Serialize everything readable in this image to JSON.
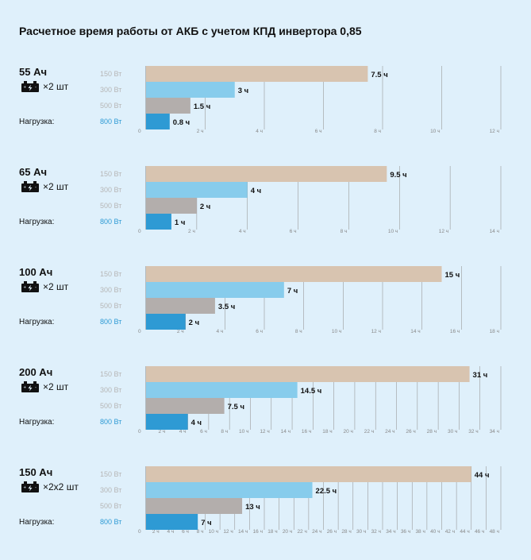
{
  "title": "Расчетное время работы от АКБ с учетом КПД инвертора 0,85",
  "load_label": "Нагрузка:",
  "colors": {
    "background": "#dff0fb",
    "series": [
      "#d8c4b0",
      "#87ccec",
      "#b3aeac",
      "#2e9ad4"
    ],
    "load_label_muted": "#b6b6b6",
    "load_label_active": "#2f9bd5",
    "grid": "#9a9a9a",
    "tick": "#888888"
  },
  "icons": {
    "battery": "battery-icon"
  },
  "chart_data": [
    {
      "type": "bar",
      "orientation": "horizontal",
      "capacity": "55 Ач",
      "quantity": "×2 шт",
      "categories": [
        "150 Вт",
        "300 Вт",
        "500 Вт",
        "800 Вт"
      ],
      "values": [
        7.5,
        3,
        1.5,
        0.8
      ],
      "value_labels": [
        "7.5 ч",
        "3 ч",
        "1.5 ч",
        "0.8 ч"
      ],
      "xlim": [
        0,
        12
      ],
      "ticks": [
        0,
        2,
        4,
        6,
        8,
        10,
        12
      ],
      "tick_labels": [
        "0",
        "2 ч",
        "4 ч",
        "6 ч",
        "8 ч",
        "10 ч",
        "12 ч"
      ],
      "grid": true
    },
    {
      "type": "bar",
      "orientation": "horizontal",
      "capacity": "65 Ач",
      "quantity": "×2 шт",
      "categories": [
        "150 Вт",
        "300 Вт",
        "500 Вт",
        "800 Вт"
      ],
      "values": [
        9.5,
        4,
        2,
        1
      ],
      "value_labels": [
        "9.5 ч",
        "4 ч",
        "2 ч",
        "1 ч"
      ],
      "xlim": [
        0,
        14
      ],
      "ticks": [
        0,
        2,
        4,
        6,
        8,
        10,
        12,
        14
      ],
      "tick_labels": [
        "0",
        "2 ч",
        "4 ч",
        "6 ч",
        "8 ч",
        "10 ч",
        "12 ч",
        "14 ч"
      ],
      "grid": true
    },
    {
      "type": "bar",
      "orientation": "horizontal",
      "capacity": "100 Ач",
      "quantity": "×2 шт",
      "categories": [
        "150 Вт",
        "300 Вт",
        "500 Вт",
        "800 Вт"
      ],
      "values": [
        15,
        7,
        3.5,
        2
      ],
      "value_labels": [
        "15 ч",
        "7 ч",
        "3.5 ч",
        "2 ч"
      ],
      "xlim": [
        0,
        18
      ],
      "ticks": [
        0,
        2,
        4,
        6,
        8,
        10,
        12,
        14,
        16,
        18
      ],
      "tick_labels": [
        "0",
        "2 ч",
        "4 ч",
        "6 ч",
        "8 ч",
        "10 ч",
        "12 ч",
        "14 ч",
        "16 ч",
        "18 ч"
      ],
      "grid": true
    },
    {
      "type": "bar",
      "orientation": "horizontal",
      "capacity": "200 Ач",
      "quantity": "×2 шт",
      "categories": [
        "150 Вт",
        "300 Вт",
        "500 Вт",
        "800 Вт"
      ],
      "values": [
        31,
        14.5,
        7.5,
        4
      ],
      "value_labels": [
        "31 ч",
        "14.5 ч",
        "7.5 ч",
        "4 ч"
      ],
      "xlim": [
        0,
        34
      ],
      "ticks": [
        0,
        2,
        4,
        6,
        8,
        10,
        12,
        14,
        16,
        18,
        20,
        22,
        24,
        26,
        28,
        30,
        32,
        34
      ],
      "tick_labels": [
        "0",
        "2 ч",
        "4 ч",
        "6 ч",
        "8 ч",
        "10 ч",
        "12 ч",
        "14 ч",
        "16 ч",
        "18 ч",
        "20 ч",
        "22 ч",
        "24 ч",
        "26 ч",
        "28 ч",
        "30 ч",
        "32 ч",
        "34 ч"
      ],
      "grid": true
    },
    {
      "type": "bar",
      "orientation": "horizontal",
      "capacity": "150 Ач",
      "quantity": "×2x2 шт",
      "categories": [
        "150 Вт",
        "300 Вт",
        "500 Вт",
        "800 Вт"
      ],
      "values": [
        44,
        22.5,
        13,
        7
      ],
      "value_labels": [
        "44 ч",
        "22.5 ч",
        "13 ч",
        "7 ч"
      ],
      "xlim": [
        0,
        48
      ],
      "ticks": [
        0,
        2,
        4,
        6,
        8,
        10,
        12,
        14,
        16,
        18,
        20,
        22,
        24,
        26,
        28,
        30,
        32,
        34,
        36,
        38,
        40,
        42,
        44,
        46,
        48
      ],
      "tick_labels": [
        "0",
        "2 ч",
        "4 ч",
        "6 ч",
        "8 ч",
        "10 ч",
        "12 ч",
        "14 ч",
        "16 ч",
        "18 ч",
        "20 ч",
        "22 ч",
        "24 ч",
        "26 ч",
        "28 ч",
        "30 ч",
        "32 ч",
        "34 ч",
        "36 ч",
        "38 ч",
        "40 ч",
        "42 ч",
        "44 ч",
        "46 ч",
        "48 ч"
      ],
      "grid": true
    }
  ]
}
